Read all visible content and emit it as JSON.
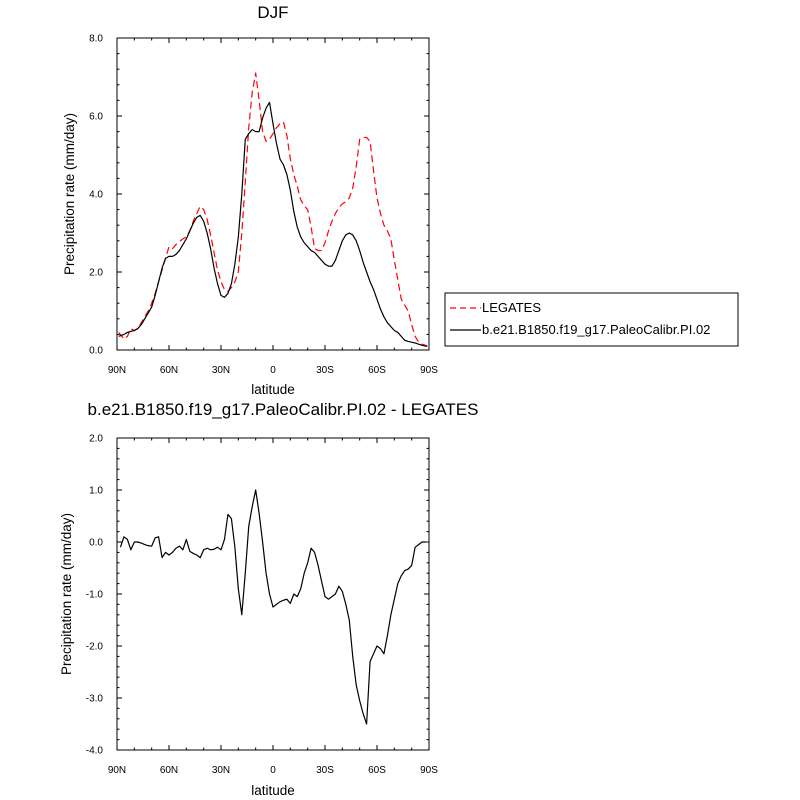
{
  "chart_data": [
    {
      "type": "line",
      "title": "DJF",
      "xlabel": "latitude",
      "ylabel": "Precipitation rate (mm/day)",
      "xlim": [
        90,
        -90
      ],
      "ylim": [
        0,
        8
      ],
      "x_ticks": [
        90,
        60,
        30,
        0,
        -30,
        -60,
        -90
      ],
      "x_tick_labels": [
        "90N",
        "60N",
        "30N",
        "0",
        "30S",
        "60S",
        "90S"
      ],
      "y_ticks": [
        0,
        2,
        4,
        6,
        8
      ],
      "y_tick_labels": [
        "0.0",
        "2.0",
        "4.0",
        "6.0",
        "8.0"
      ],
      "legend": {
        "placement": "right",
        "entries": [
          "LEGATES",
          "b.e21.B1850.f19_g17.PaleoCalibr.PI.02"
        ]
      },
      "series": [
        {
          "name": "LEGATES",
          "color": "#ff0000",
          "dash": "dashed",
          "x": [
            89,
            86,
            84,
            82,
            80,
            78,
            76,
            74,
            72,
            70,
            68,
            66,
            64,
            62,
            60,
            58,
            56,
            54,
            52,
            50,
            48,
            46,
            44,
            42,
            40,
            38,
            36,
            34,
            32,
            30,
            28,
            26,
            24,
            22,
            20,
            18,
            16,
            14,
            12,
            10,
            8,
            6,
            4,
            2,
            0,
            -2,
            -4,
            -6,
            -8,
            -10,
            -12,
            -14,
            -16,
            -18,
            -20,
            -22,
            -24,
            -26,
            -28,
            -30,
            -32,
            -34,
            -36,
            -38,
            -40,
            -42,
            -44,
            -46,
            -48,
            -50,
            -52,
            -54,
            -56,
            -58,
            -60,
            -62,
            -64,
            -66,
            -68,
            -70,
            -72,
            -74,
            -76,
            -78,
            -80,
            -82,
            -84,
            -86,
            -88,
            -89
          ],
          "y": [
            0.45,
            0.28,
            0.35,
            0.55,
            0.5,
            0.55,
            0.7,
            0.85,
            1.0,
            1.2,
            1.45,
            1.75,
            2.05,
            2.35,
            2.65,
            2.6,
            2.7,
            2.78,
            2.85,
            2.9,
            3.05,
            3.3,
            3.5,
            3.68,
            3.6,
            3.35,
            2.95,
            2.5,
            2.05,
            1.75,
            1.55,
            1.5,
            1.6,
            1.75,
            2.0,
            3.0,
            4.3,
            5.7,
            6.6,
            7.1,
            6.4,
            5.6,
            5.35,
            5.4,
            5.55,
            5.7,
            5.8,
            5.85,
            5.5,
            4.9,
            4.5,
            4.2,
            3.85,
            3.7,
            3.6,
            3.15,
            2.6,
            2.55,
            2.55,
            2.75,
            3.05,
            3.3,
            3.5,
            3.65,
            3.75,
            3.8,
            3.9,
            4.15,
            4.7,
            5.4,
            5.45,
            5.45,
            5.35,
            4.6,
            3.9,
            3.5,
            3.2,
            3.05,
            2.85,
            2.3,
            1.8,
            1.3,
            1.15,
            1.0,
            0.65,
            0.35,
            0.2,
            0.15,
            0.12,
            0.1
          ]
        },
        {
          "name": "b.e21.B1850.f19_g17.PaleoCalibr.PI.02",
          "color": "#000000",
          "dash": "solid",
          "x": [
            89,
            86,
            84,
            82,
            80,
            78,
            76,
            74,
            72,
            70,
            68,
            66,
            64,
            62,
            60,
            58,
            56,
            54,
            52,
            50,
            48,
            46,
            44,
            42,
            40,
            38,
            36,
            34,
            32,
            30,
            28,
            26,
            24,
            22,
            20,
            18,
            16,
            14,
            12,
            10,
            8,
            6,
            4,
            2,
            0,
            -2,
            -4,
            -6,
            -8,
            -10,
            -12,
            -14,
            -16,
            -18,
            -20,
            -22,
            -24,
            -26,
            -28,
            -30,
            -32,
            -34,
            -36,
            -38,
            -40,
            -42,
            -44,
            -46,
            -48,
            -50,
            -52,
            -54,
            -56,
            -58,
            -60,
            -62,
            -64,
            -66,
            -68,
            -70,
            -72,
            -74,
            -76,
            -78,
            -80,
            -82,
            -84,
            -86,
            -88,
            -89
          ],
          "y": [
            0.35,
            0.4,
            0.45,
            0.48,
            0.5,
            0.55,
            0.65,
            0.8,
            0.95,
            1.1,
            1.4,
            1.75,
            2.1,
            2.35,
            2.4,
            2.4,
            2.45,
            2.55,
            2.7,
            2.85,
            3.05,
            3.25,
            3.4,
            3.45,
            3.3,
            3.0,
            2.6,
            2.1,
            1.7,
            1.4,
            1.35,
            1.45,
            1.7,
            2.2,
            2.9,
            4.0,
            5.4,
            5.55,
            5.65,
            5.6,
            5.6,
            5.95,
            6.2,
            6.35,
            5.8,
            5.3,
            4.9,
            4.75,
            4.5,
            4.1,
            3.55,
            3.15,
            2.9,
            2.75,
            2.65,
            2.55,
            2.5,
            2.4,
            2.3,
            2.2,
            2.15,
            2.15,
            2.3,
            2.55,
            2.8,
            2.95,
            3.0,
            2.95,
            2.8,
            2.55,
            2.25,
            2.0,
            1.75,
            1.55,
            1.3,
            1.05,
            0.85,
            0.7,
            0.6,
            0.5,
            0.45,
            0.35,
            0.25,
            0.22,
            0.2,
            0.18,
            0.15,
            0.12,
            0.1,
            0.1
          ]
        }
      ]
    },
    {
      "type": "line",
      "title": "b.e21.B1850.f19_g17.PaleoCalibr.PI.02 - LEGATES",
      "xlabel": "latitude",
      "ylabel": "Precipitation rate (mm/day)",
      "xlim": [
        90,
        -90
      ],
      "ylim": [
        -4,
        2
      ],
      "x_ticks": [
        90,
        60,
        30,
        0,
        -30,
        -60,
        -90
      ],
      "x_tick_labels": [
        "90N",
        "60N",
        "30N",
        "0",
        "30S",
        "60S",
        "90S"
      ],
      "y_ticks": [
        -4,
        -3,
        -2,
        -1,
        0,
        1,
        2
      ],
      "y_tick_labels": [
        "-4.0",
        "-3.0",
        "-2.0",
        "-1.0",
        "0.0",
        "1.0",
        "2.0"
      ],
      "series": [
        {
          "color": "#000000",
          "dash": "solid",
          "x": [
            88,
            86,
            84,
            82,
            80,
            78,
            76,
            74,
            72,
            70,
            68,
            66,
            64,
            62,
            60,
            58,
            56,
            54,
            52,
            50,
            48,
            46,
            44,
            42,
            40,
            38,
            36,
            34,
            32,
            30,
            28,
            26,
            24,
            22,
            20,
            18,
            16,
            14,
            12,
            10,
            8,
            6,
            4,
            2,
            0,
            -2,
            -4,
            -6,
            -8,
            -10,
            -12,
            -14,
            -16,
            -18,
            -20,
            -22,
            -24,
            -26,
            -28,
            -30,
            -32,
            -34,
            -36,
            -38,
            -40,
            -42,
            -44,
            -46,
            -48,
            -50,
            -52,
            -54,
            -56,
            -58,
            -60,
            -62,
            -64,
            -66,
            -68,
            -70,
            -72,
            -74,
            -76,
            -78,
            -80,
            -82,
            -84,
            -86,
            -88
          ],
          "y": [
            -0.1,
            0.1,
            0.05,
            -0.15,
            0.0,
            0.0,
            -0.02,
            -0.05,
            -0.07,
            -0.08,
            0.08,
            0.1,
            -0.3,
            -0.2,
            -0.25,
            -0.2,
            -0.12,
            -0.08,
            -0.15,
            0.05,
            -0.18,
            -0.22,
            -0.25,
            -0.3,
            -0.15,
            -0.12,
            -0.15,
            -0.14,
            -0.1,
            -0.15,
            0.05,
            0.53,
            0.45,
            -0.1,
            -0.9,
            -1.4,
            -0.6,
            0.3,
            0.68,
            1.0,
            0.55,
            0.0,
            -0.6,
            -1.0,
            -1.25,
            -1.2,
            -1.15,
            -1.12,
            -1.1,
            -1.18,
            -1.0,
            -1.05,
            -0.9,
            -0.6,
            -0.4,
            -0.12,
            -0.2,
            -0.45,
            -0.75,
            -1.05,
            -1.1,
            -1.05,
            -1.0,
            -0.85,
            -0.95,
            -1.2,
            -1.5,
            -2.2,
            -2.75,
            -3.05,
            -3.3,
            -3.5,
            -2.3,
            -2.15,
            -2.0,
            -2.05,
            -2.15,
            -1.8,
            -1.4,
            -1.1,
            -0.8,
            -0.65,
            -0.55,
            -0.52,
            -0.45,
            -0.1,
            -0.05,
            0.0,
            0.0
          ]
        }
      ]
    }
  ]
}
